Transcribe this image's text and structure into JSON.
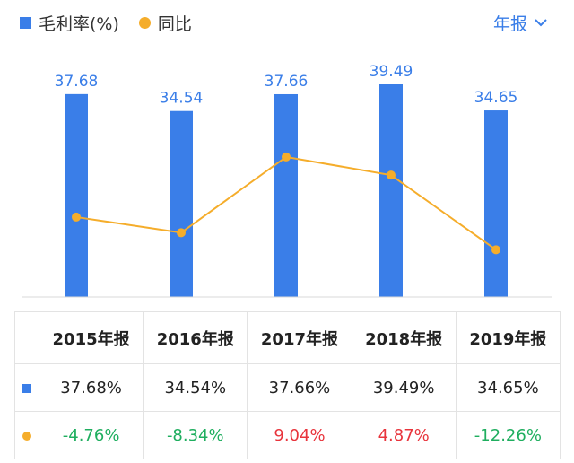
{
  "legend": {
    "gross_margin": "毛利率(%)",
    "yoy": "同比"
  },
  "period_selector": {
    "label": "年报"
  },
  "colors": {
    "bar": "#3a7ee8",
    "line": "#f5ad2b",
    "positive": "#e8343c",
    "negative": "#1fae5f",
    "axis": "#d9d9d9"
  },
  "chart_data": {
    "type": "bar",
    "categories": [
      "2015年报",
      "2016年报",
      "2017年报",
      "2018年报",
      "2019年报"
    ],
    "series": [
      {
        "name": "毛利率(%)",
        "type": "bar",
        "values": [
          37.68,
          34.54,
          37.66,
          39.49,
          34.65
        ],
        "labels": [
          "37.68",
          "34.54",
          "37.66",
          "39.49",
          "34.65"
        ]
      },
      {
        "name": "同比",
        "type": "line",
        "values": [
          -4.76,
          -8.34,
          9.04,
          4.87,
          -12.26
        ]
      }
    ],
    "bar_ylim": [
      0,
      39.49
    ],
    "line_ylim": [
      -23.1,
      25.7
    ],
    "title": "",
    "xlabel": "",
    "ylabel": ""
  },
  "table": {
    "headers": [
      "2015年报",
      "2016年报",
      "2017年报",
      "2018年报",
      "2019年报"
    ],
    "gross_margin_row": [
      "37.68%",
      "34.54%",
      "37.66%",
      "39.49%",
      "34.65%"
    ],
    "yoy_row": [
      "-4.76%",
      "-8.34%",
      "9.04%",
      "4.87%",
      "-12.26%"
    ]
  }
}
